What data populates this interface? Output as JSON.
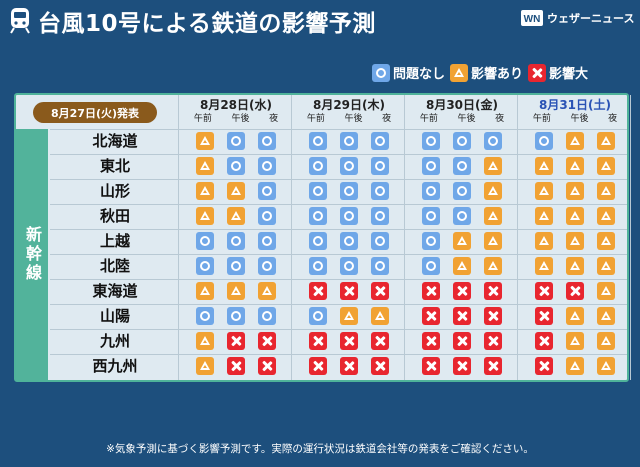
{
  "header": {
    "title": "台風10号による鉄道の影響予測",
    "brand": "ウェザーニュース"
  },
  "legend": [
    {
      "symbol": "ok",
      "label": "問題なし"
    },
    {
      "symbol": "warn",
      "label": "影響あり"
    },
    {
      "symbol": "bad",
      "label": "影響大"
    }
  ],
  "panel": {
    "issued": "8月27日(火)発表",
    "group_label": "新幹線",
    "dates": [
      {
        "label": "8月28日(水)",
        "latest": false
      },
      {
        "label": "8月29日(木)",
        "latest": false
      },
      {
        "label": "8月30日(金)",
        "latest": false
      },
      {
        "label": "8月31日(土)",
        "latest": true
      }
    ],
    "slots": [
      "午前",
      "午後",
      "夜"
    ],
    "rows": [
      {
        "name": "北海道",
        "cells": [
          "warn",
          "ok",
          "ok",
          "ok",
          "ok",
          "ok",
          "ok",
          "ok",
          "ok",
          "ok",
          "warn",
          "warn"
        ]
      },
      {
        "name": "東北",
        "cells": [
          "warn",
          "ok",
          "ok",
          "ok",
          "ok",
          "ok",
          "ok",
          "ok",
          "warn",
          "warn",
          "warn",
          "warn"
        ]
      },
      {
        "name": "山形",
        "cells": [
          "warn",
          "warn",
          "ok",
          "ok",
          "ok",
          "ok",
          "ok",
          "ok",
          "warn",
          "warn",
          "warn",
          "warn"
        ]
      },
      {
        "name": "秋田",
        "cells": [
          "warn",
          "warn",
          "ok",
          "ok",
          "ok",
          "ok",
          "ok",
          "ok",
          "warn",
          "warn",
          "warn",
          "warn"
        ]
      },
      {
        "name": "上越",
        "cells": [
          "ok",
          "ok",
          "ok",
          "ok",
          "ok",
          "ok",
          "ok",
          "warn",
          "warn",
          "warn",
          "warn",
          "warn"
        ]
      },
      {
        "name": "北陸",
        "cells": [
          "ok",
          "ok",
          "ok",
          "ok",
          "ok",
          "ok",
          "ok",
          "warn",
          "warn",
          "warn",
          "warn",
          "warn"
        ]
      },
      {
        "name": "東海道",
        "cells": [
          "warn",
          "warn",
          "warn",
          "bad",
          "bad",
          "bad",
          "bad",
          "bad",
          "bad",
          "bad",
          "bad",
          "warn"
        ]
      },
      {
        "name": "山陽",
        "cells": [
          "ok",
          "ok",
          "ok",
          "ok",
          "warn",
          "warn",
          "bad",
          "bad",
          "bad",
          "bad",
          "warn",
          "warn"
        ]
      },
      {
        "name": "九州",
        "cells": [
          "warn",
          "bad",
          "bad",
          "bad",
          "bad",
          "bad",
          "bad",
          "bad",
          "bad",
          "bad",
          "warn",
          "warn"
        ]
      },
      {
        "name": "西九州",
        "cells": [
          "warn",
          "bad",
          "bad",
          "bad",
          "bad",
          "bad",
          "bad",
          "bad",
          "bad",
          "bad",
          "warn",
          "warn"
        ]
      }
    ]
  },
  "footnote": "※気象予測に基づく影響予測です。実際の運行状況は鉄道会社等の発表をご確認ください。",
  "colors": {
    "background": "#1d4f7d",
    "panel": "#dfeaf1",
    "accent_green": "#52b39b",
    "ok": "#6fa7e8",
    "warn": "#f1a233",
    "bad": "#e8262f",
    "badge": "#8a5a1c",
    "latest_date": "#2a53b5"
  }
}
